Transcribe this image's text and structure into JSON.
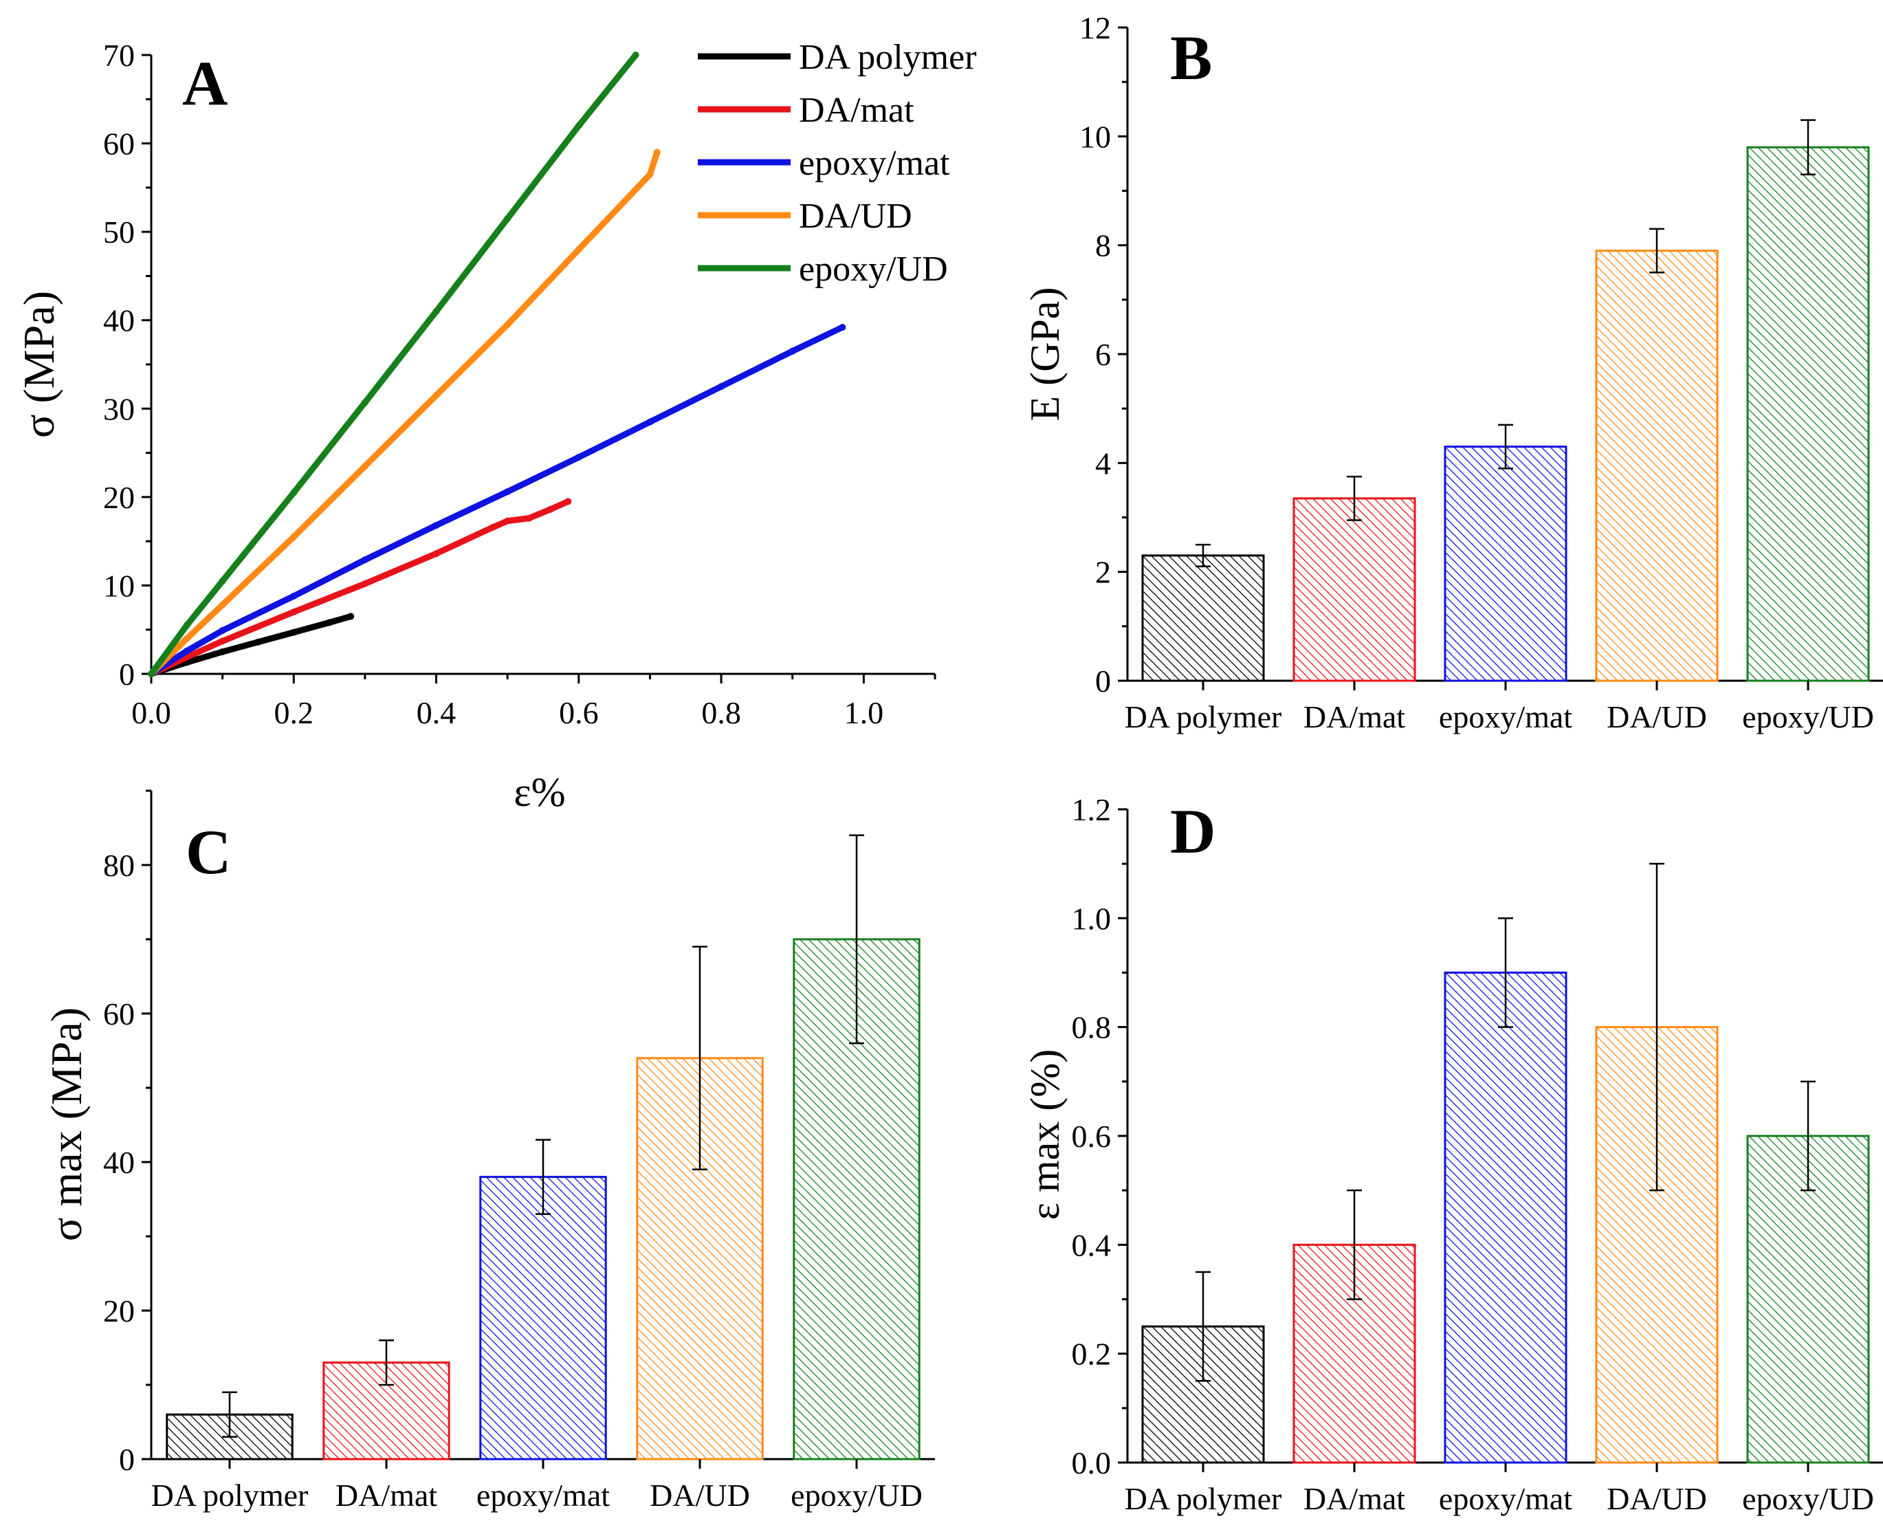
{
  "figure": {
    "colors": {
      "black": "#000000",
      "red": "#e8131a",
      "blue": "#0d13e0",
      "orange": "#ff8a16",
      "green": "#15801c"
    }
  },
  "chart_data": [
    {
      "id": "A",
      "type": "line",
      "panel_label": "A",
      "xlabel": "ε%",
      "ylabel": "σ (MPa)",
      "xlim": [
        0.0,
        1.1
      ],
      "ylim": [
        0,
        70
      ],
      "x_ticks": [
        0.0,
        0.2,
        0.4,
        0.6,
        0.8,
        1.0
      ],
      "x_tick_labels": [
        "0.0",
        "0.2",
        "0.4",
        "0.6",
        "0.8",
        "1.0"
      ],
      "y_ticks": [
        0,
        10,
        20,
        30,
        40,
        50,
        60,
        70
      ],
      "y_tick_labels": [
        "0",
        "10",
        "20",
        "30",
        "40",
        "50",
        "60",
        "70"
      ],
      "legend_position": "top-right",
      "series": [
        {
          "name": "DA polymer",
          "color": "#000000",
          "x": [
            0.0,
            0.05,
            0.1,
            0.15,
            0.2,
            0.25,
            0.28
          ],
          "y": [
            0,
            1.3,
            2.5,
            3.6,
            4.7,
            5.8,
            6.5
          ]
        },
        {
          "name": "DA/mat",
          "color": "#e8131a",
          "x": [
            0.0,
            0.05,
            0.1,
            0.2,
            0.3,
            0.4,
            0.48,
            0.5,
            0.53,
            0.56,
            0.585
          ],
          "y": [
            0,
            1.9,
            3.7,
            7.0,
            10.2,
            13.6,
            16.6,
            17.3,
            17.6,
            18.6,
            19.5
          ]
        },
        {
          "name": "epoxy/mat",
          "color": "#0d13e0",
          "x": [
            0.0,
            0.05,
            0.1,
            0.2,
            0.3,
            0.4,
            0.5,
            0.6,
            0.7,
            0.8,
            0.9,
            0.97
          ],
          "y": [
            0,
            2.6,
            4.9,
            8.8,
            12.9,
            16.8,
            20.6,
            24.5,
            28.5,
            32.5,
            36.5,
            39.2
          ]
        },
        {
          "name": "DA/UD",
          "color": "#ff8a16",
          "x": [
            0.0,
            0.05,
            0.1,
            0.2,
            0.3,
            0.4,
            0.5,
            0.6,
            0.7,
            0.71
          ],
          "y": [
            0,
            4.0,
            7.8,
            15.5,
            23.5,
            31.5,
            39.5,
            48.0,
            56.5,
            59.0
          ]
        },
        {
          "name": "epoxy/UD",
          "color": "#15801c",
          "x": [
            0.0,
            0.05,
            0.1,
            0.2,
            0.3,
            0.4,
            0.5,
            0.6,
            0.68
          ],
          "y": [
            0,
            5.5,
            10.5,
            20.5,
            30.7,
            41.0,
            51.5,
            62.0,
            70.0
          ]
        }
      ]
    },
    {
      "id": "B",
      "type": "bar",
      "panel_label": "B",
      "ylabel": "E (GPa)",
      "ylim": [
        0,
        12
      ],
      "y_ticks": [
        0,
        2,
        4,
        6,
        8,
        10,
        12
      ],
      "y_tick_labels": [
        "0",
        "2",
        "4",
        "6",
        "8",
        "10",
        "12"
      ],
      "categories": [
        "DA polymer",
        "DA/mat",
        "epoxy/mat",
        "DA/UD",
        "epoxy/UD"
      ],
      "colors": [
        "#000000",
        "#e8131a",
        "#0d13e0",
        "#ff8a16",
        "#15801c"
      ],
      "values": [
        2.3,
        3.35,
        4.3,
        7.9,
        9.8
      ],
      "errors": [
        0.2,
        0.4,
        0.4,
        0.4,
        0.5
      ]
    },
    {
      "id": "C",
      "type": "bar",
      "panel_label": "C",
      "ylabel": "σ max (MPa)",
      "ylim": [
        0,
        90
      ],
      "y_ticks": [
        0,
        20,
        40,
        60,
        80
      ],
      "y_tick_labels": [
        "0",
        "20",
        "40",
        "60",
        "80"
      ],
      "categories": [
        "DA polymer",
        "DA/mat",
        "epoxy/mat",
        "DA/UD",
        "epoxy/UD"
      ],
      "colors": [
        "#000000",
        "#e8131a",
        "#0d13e0",
        "#ff8a16",
        "#15801c"
      ],
      "values": [
        6,
        13,
        38,
        54,
        70
      ],
      "errors": [
        3,
        3,
        5,
        15,
        14
      ]
    },
    {
      "id": "D",
      "type": "bar",
      "panel_label": "D",
      "ylabel": "ε max (%)",
      "ylim": [
        0,
        1.2
      ],
      "y_ticks": [
        0.0,
        0.2,
        0.4,
        0.6,
        0.8,
        1.0,
        1.2
      ],
      "y_tick_labels": [
        "0.0",
        "0.2",
        "0.4",
        "0.6",
        "0.8",
        "1.0",
        "1.2"
      ],
      "categories": [
        "DA polymer",
        "DA/mat",
        "epoxy/mat",
        "DA/UD",
        "epoxy/UD"
      ],
      "colors": [
        "#000000",
        "#e8131a",
        "#0d13e0",
        "#ff8a16",
        "#15801c"
      ],
      "values": [
        0.25,
        0.4,
        0.9,
        0.8,
        0.6
      ],
      "errors": [
        0.1,
        0.1,
        0.1,
        0.3,
        0.1
      ]
    }
  ]
}
